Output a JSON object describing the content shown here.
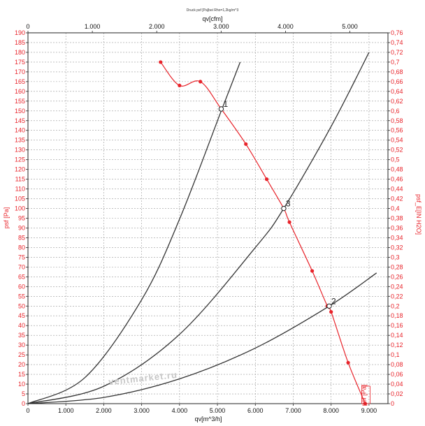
{
  "chart_data": {
    "type": "line",
    "title": "Druck psf [Pa]bei Rho=1,2kg/m^3",
    "x_bottom": {
      "label": "qv[m^3/h]",
      "range": [
        0,
        9500
      ],
      "ticks": [
        0,
        1000,
        2000,
        3000,
        4000,
        5000,
        6000,
        7000,
        8000,
        9000
      ],
      "tick_labels": [
        "0",
        "1.000",
        "2.000",
        "3.000",
        "4.000",
        "5.000",
        "6.000",
        "7.000",
        "8.000",
        "9.000"
      ]
    },
    "x_top": {
      "label": "qv[cfm]",
      "range": [
        0,
        5591
      ],
      "ticks": [
        0,
        1000,
        2000,
        3000,
        4000,
        5000
      ],
      "tick_labels": [
        "0",
        "1.000",
        "2.000",
        "3.000",
        "4.000",
        "5.000"
      ]
    },
    "y_left": {
      "label": "psf [Pa]",
      "range": [
        0,
        190
      ],
      "ticks": [
        0,
        5,
        10,
        15,
        20,
        25,
        30,
        35,
        40,
        45,
        50,
        55,
        60,
        65,
        70,
        75,
        80,
        85,
        90,
        95,
        100,
        105,
        110,
        115,
        120,
        125,
        130,
        135,
        140,
        145,
        150,
        155,
        160,
        165,
        170,
        175,
        180,
        185,
        190
      ]
    },
    "y_right": {
      "label": "psf_E[IN H2O]",
      "range": [
        0,
        0.763
      ],
      "tick_labels": [
        "0",
        "0,02",
        "0,04",
        "0,06",
        "0,08",
        "0,1",
        "0,12",
        "0,14",
        "0,16",
        "0,18",
        "0,2",
        "0,22",
        "0,24",
        "0,26",
        "0,28",
        "0,3",
        "0,32",
        "0,34",
        "0,36",
        "0,38",
        "0,4",
        "0,42",
        "0,44",
        "0,46",
        "0,48",
        "0,5",
        "0,52",
        "0,54",
        "0,56",
        "0,58",
        "0,6",
        "0,62",
        "0,64",
        "0,66",
        "0,68",
        "0,7",
        "0,72",
        "0,74",
        "0,76"
      ]
    },
    "grid": true,
    "series": [
      {
        "name": "psf [Pa]",
        "color": "#e8232a",
        "marker": "circle",
        "x": [
          3500,
          4000,
          4550,
          5100,
          5750,
          6300,
          6750,
          6900,
          7500,
          7900,
          8000,
          8450,
          8900
        ],
        "y": [
          175,
          163,
          165,
          151,
          133,
          115,
          100,
          93,
          68,
          50,
          47,
          21,
          0
        ]
      },
      {
        "x": [
          0,
          1500,
          3000,
          4000,
          5100,
          5600
        ],
        "y": [
          0,
          13.3,
          53.2,
          94.5,
          150,
          175
        ]
      },
      {
        "x": [
          0,
          2000,
          4000,
          6000,
          6750,
          8000,
          9000
        ],
        "y": [
          0,
          8.9,
          35.5,
          80,
          100,
          142,
          180
        ]
      },
      {
        "x": [
          0,
          2000,
          4000,
          6000,
          7950,
          9200
        ],
        "y": [
          0,
          3.2,
          12.7,
          28.5,
          50,
          67
        ]
      }
    ],
    "annotations": [
      {
        "text": "1",
        "x": 5100,
        "y": 151
      },
      {
        "text": "3",
        "x": 6750,
        "y": 100
      },
      {
        "text": "2",
        "x": 7950,
        "y": 50
      },
      {
        "text": "psf [Pa]",
        "x": 8900,
        "y": 0
      }
    ],
    "watermark": "ventmarket.ru"
  }
}
